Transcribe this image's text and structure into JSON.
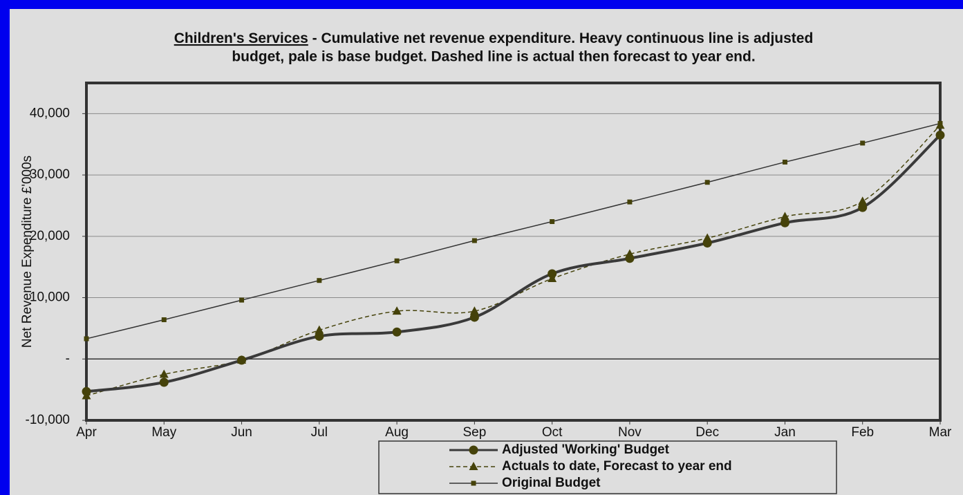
{
  "chart_data": {
    "type": "line",
    "title": [
      "Children's Services",
      " - Cumulative net revenue expenditure. Heavy continuous line is adjusted",
      "budget, pale is base budget. Dashed line is actual then forecast to year end."
    ],
    "y_label": "Net Revenue  Expenditure £'000s",
    "categories": [
      "Apr",
      "May",
      "Jun",
      "Jul",
      "Aug",
      "Sep",
      "Oct",
      "Nov",
      "Dec",
      "Jan",
      "Feb",
      "Mar"
    ],
    "ylim": [
      -10000,
      45000
    ],
    "yticks": [
      {
        "value": -10000,
        "label": "-10,000"
      },
      {
        "value": 0,
        "label": "-"
      },
      {
        "value": 10000,
        "label": "10,000"
      },
      {
        "value": 20000,
        "label": "20,000"
      },
      {
        "value": 30000,
        "label": "30,000"
      },
      {
        "value": 40000,
        "label": "40,000"
      }
    ],
    "grid": true,
    "smooth": true,
    "series": [
      {
        "name": "Adjusted 'Working' Budget",
        "color": "#3a3a3a",
        "marker_color": "#45420a",
        "marker": "circle",
        "width": 4,
        "dashed": false,
        "values": [
          -5300,
          -3800,
          -200,
          3700,
          4400,
          6800,
          13900,
          16400,
          18900,
          22200,
          24700,
          36500
        ]
      },
      {
        "name": "Actuals to date, Forecast to year end",
        "color": "#45420a",
        "marker_color": "#45420a",
        "marker": "triangle",
        "width": 1.5,
        "dashed": true,
        "values": [
          -6000,
          -2500,
          -200,
          4700,
          7800,
          7800,
          13100,
          17100,
          19700,
          23200,
          25700,
          38100
        ]
      },
      {
        "name": "Original Budget",
        "color": "#333333",
        "marker_color": "#45420a",
        "marker": "square",
        "width": 1.5,
        "dashed": false,
        "values": [
          3300,
          6400,
          9600,
          12800,
          16000,
          19300,
          22400,
          25600,
          28800,
          32100,
          35200,
          38400
        ]
      }
    ]
  }
}
